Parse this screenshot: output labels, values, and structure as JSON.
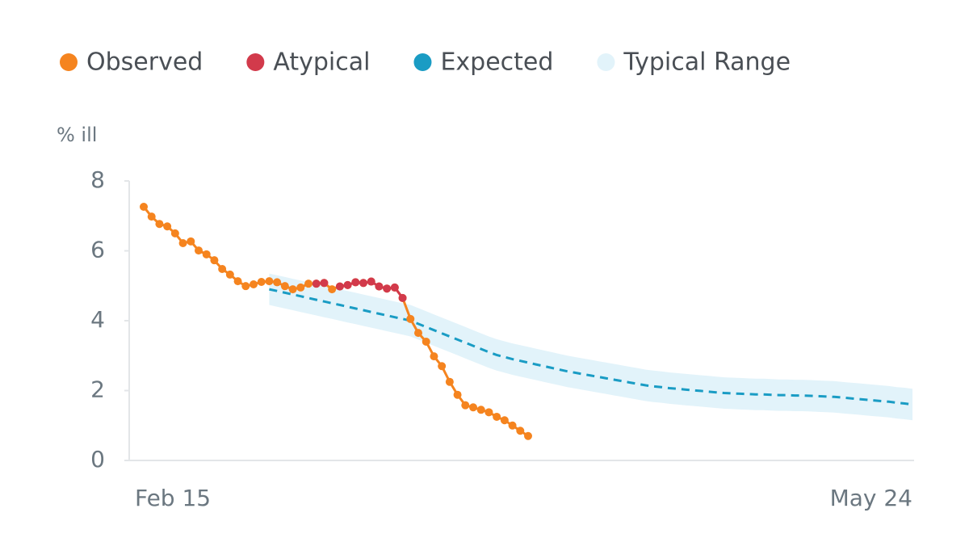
{
  "chart_data": {
    "type": "line",
    "y_label": "% ill",
    "ylim": [
      0,
      8
    ],
    "yticks": [
      0,
      2,
      4,
      6,
      8
    ],
    "categories": [
      "Feb 15",
      null,
      null,
      null,
      null,
      null,
      null,
      null,
      null,
      null,
      null,
      null,
      null,
      null,
      null,
      null,
      null,
      null,
      null,
      null,
      null,
      null,
      null,
      null,
      null,
      null,
      null,
      null,
      null,
      null,
      null,
      null,
      null,
      null,
      null,
      null,
      null,
      null,
      null,
      null,
      null,
      null,
      null,
      null,
      null,
      null,
      null,
      null,
      null,
      null,
      null,
      null,
      null,
      null,
      null,
      null,
      null,
      null,
      null,
      null,
      null,
      null,
      null,
      null,
      null,
      null,
      null,
      null,
      null,
      null,
      null,
      null,
      null,
      null,
      null,
      null,
      null,
      null,
      null,
      null,
      null,
      null,
      null,
      null,
      null,
      null,
      null,
      null,
      null,
      null,
      null,
      null,
      null,
      null,
      null,
      null,
      null,
      null,
      "May 24"
    ],
    "series": [
      {
        "name": "Observed",
        "color": "#f5841f",
        "style": "dots",
        "values": [
          7.26,
          6.98,
          6.77,
          6.7,
          6.5,
          6.22,
          6.27,
          6.01,
          5.9,
          5.73,
          5.48,
          5.32,
          5.13,
          4.99,
          5.04,
          5.11,
          5.13,
          5.1,
          4.99,
          4.9,
          4.95,
          5.06,
          5.06,
          5.08,
          4.9,
          4.98,
          5.02,
          5.1,
          5.08,
          5.12,
          4.98,
          4.92,
          4.95,
          4.65,
          4.05,
          3.65,
          3.4,
          2.98,
          2.7,
          2.25,
          1.88,
          1.58,
          1.52,
          1.45,
          1.38,
          1.25,
          1.15,
          1.0,
          0.85,
          0.7,
          null,
          null,
          null,
          null,
          null,
          null,
          null,
          null,
          null,
          null,
          null,
          null,
          null,
          null,
          null,
          null,
          null,
          null,
          null,
          null,
          null,
          null,
          null,
          null,
          null,
          null,
          null,
          null,
          null,
          null,
          null,
          null,
          null,
          null,
          null,
          null,
          null,
          null,
          null,
          null,
          null,
          null,
          null,
          null,
          null,
          null,
          null,
          null,
          null
        ]
      },
      {
        "name": "Atypical",
        "color": "#d23a4b",
        "style": "dots",
        "values": [
          null,
          null,
          null,
          null,
          null,
          null,
          null,
          null,
          null,
          null,
          null,
          null,
          null,
          null,
          null,
          null,
          null,
          null,
          null,
          null,
          null,
          null,
          5.06,
          5.08,
          null,
          4.98,
          5.02,
          5.1,
          5.08,
          5.12,
          4.98,
          4.92,
          4.95,
          4.65,
          null,
          null,
          null,
          null,
          null,
          null,
          null,
          null,
          null,
          null,
          null,
          null,
          null,
          null,
          null,
          null,
          null,
          null,
          null,
          null,
          null,
          null,
          null,
          null,
          null,
          null,
          null,
          null,
          null,
          null,
          null,
          null,
          null,
          null,
          null,
          null,
          null,
          null,
          null,
          null,
          null,
          null,
          null,
          null,
          null,
          null,
          null,
          null,
          null,
          null,
          null,
          null,
          null,
          null,
          null,
          null,
          null,
          null,
          null,
          null,
          null,
          null,
          null,
          null,
          null
        ]
      },
      {
        "name": "Expected",
        "color": "#1a9cc4",
        "style": "dashed",
        "values": [
          null,
          null,
          null,
          null,
          null,
          null,
          null,
          null,
          null,
          null,
          null,
          null,
          null,
          null,
          null,
          null,
          4.9,
          4.85,
          4.8,
          4.75,
          4.7,
          4.65,
          4.6,
          4.55,
          4.5,
          4.45,
          4.4,
          4.35,
          4.3,
          4.25,
          4.2,
          4.15,
          4.1,
          4.05,
          4.0,
          3.91,
          3.82,
          3.73,
          3.64,
          3.55,
          3.46,
          3.37,
          3.28,
          3.19,
          3.1,
          3.02,
          2.96,
          2.9,
          2.85,
          2.8,
          2.75,
          2.7,
          2.65,
          2.6,
          2.55,
          2.51,
          2.47,
          2.43,
          2.39,
          2.35,
          2.31,
          2.27,
          2.23,
          2.19,
          2.15,
          2.12,
          2.1,
          2.07,
          2.05,
          2.03,
          2.01,
          1.99,
          1.97,
          1.95,
          1.93,
          1.92,
          1.91,
          1.9,
          1.89,
          1.89,
          1.88,
          1.87,
          1.87,
          1.86,
          1.86,
          1.85,
          1.84,
          1.83,
          1.82,
          1.8,
          1.78,
          1.76,
          1.74,
          1.72,
          1.7,
          1.68,
          1.65,
          1.63,
          1.6
        ]
      },
      {
        "name": "Typical Range",
        "color": "#e2f3fa",
        "style": "band",
        "upper": [
          null,
          null,
          null,
          null,
          null,
          null,
          null,
          null,
          null,
          null,
          null,
          null,
          null,
          null,
          null,
          null,
          5.35,
          5.3,
          5.25,
          5.2,
          5.15,
          5.1,
          5.05,
          5.0,
          4.95,
          4.9,
          4.85,
          4.8,
          4.75,
          4.7,
          4.65,
          4.6,
          4.55,
          4.5,
          4.45,
          4.36,
          4.27,
          4.18,
          4.09,
          4.0,
          3.91,
          3.82,
          3.73,
          3.64,
          3.55,
          3.47,
          3.41,
          3.35,
          3.3,
          3.25,
          3.2,
          3.15,
          3.1,
          3.05,
          3.0,
          2.96,
          2.92,
          2.88,
          2.84,
          2.8,
          2.76,
          2.72,
          2.68,
          2.64,
          2.6,
          2.57,
          2.55,
          2.52,
          2.5,
          2.48,
          2.46,
          2.44,
          2.42,
          2.4,
          2.38,
          2.37,
          2.36,
          2.35,
          2.34,
          2.34,
          2.33,
          2.32,
          2.32,
          2.31,
          2.31,
          2.3,
          2.29,
          2.28,
          2.27,
          2.25,
          2.23,
          2.21,
          2.19,
          2.17,
          2.15,
          2.13,
          2.1,
          2.08,
          2.05
        ],
        "lower": [
          null,
          null,
          null,
          null,
          null,
          null,
          null,
          null,
          null,
          null,
          null,
          null,
          null,
          null,
          null,
          null,
          4.45,
          4.4,
          4.35,
          4.3,
          4.25,
          4.2,
          4.15,
          4.1,
          4.05,
          4.0,
          3.95,
          3.9,
          3.85,
          3.8,
          3.75,
          3.7,
          3.65,
          3.6,
          3.55,
          3.46,
          3.37,
          3.28,
          3.19,
          3.1,
          3.01,
          2.92,
          2.83,
          2.74,
          2.65,
          2.57,
          2.51,
          2.45,
          2.4,
          2.35,
          2.3,
          2.25,
          2.2,
          2.15,
          2.1,
          2.06,
          2.02,
          1.98,
          1.94,
          1.9,
          1.86,
          1.82,
          1.78,
          1.74,
          1.7,
          1.67,
          1.65,
          1.62,
          1.6,
          1.58,
          1.56,
          1.54,
          1.52,
          1.5,
          1.48,
          1.47,
          1.46,
          1.45,
          1.44,
          1.44,
          1.43,
          1.42,
          1.42,
          1.41,
          1.41,
          1.4,
          1.39,
          1.38,
          1.37,
          1.35,
          1.33,
          1.31,
          1.29,
          1.27,
          1.25,
          1.23,
          1.2,
          1.18,
          1.15
        ]
      }
    ]
  }
}
